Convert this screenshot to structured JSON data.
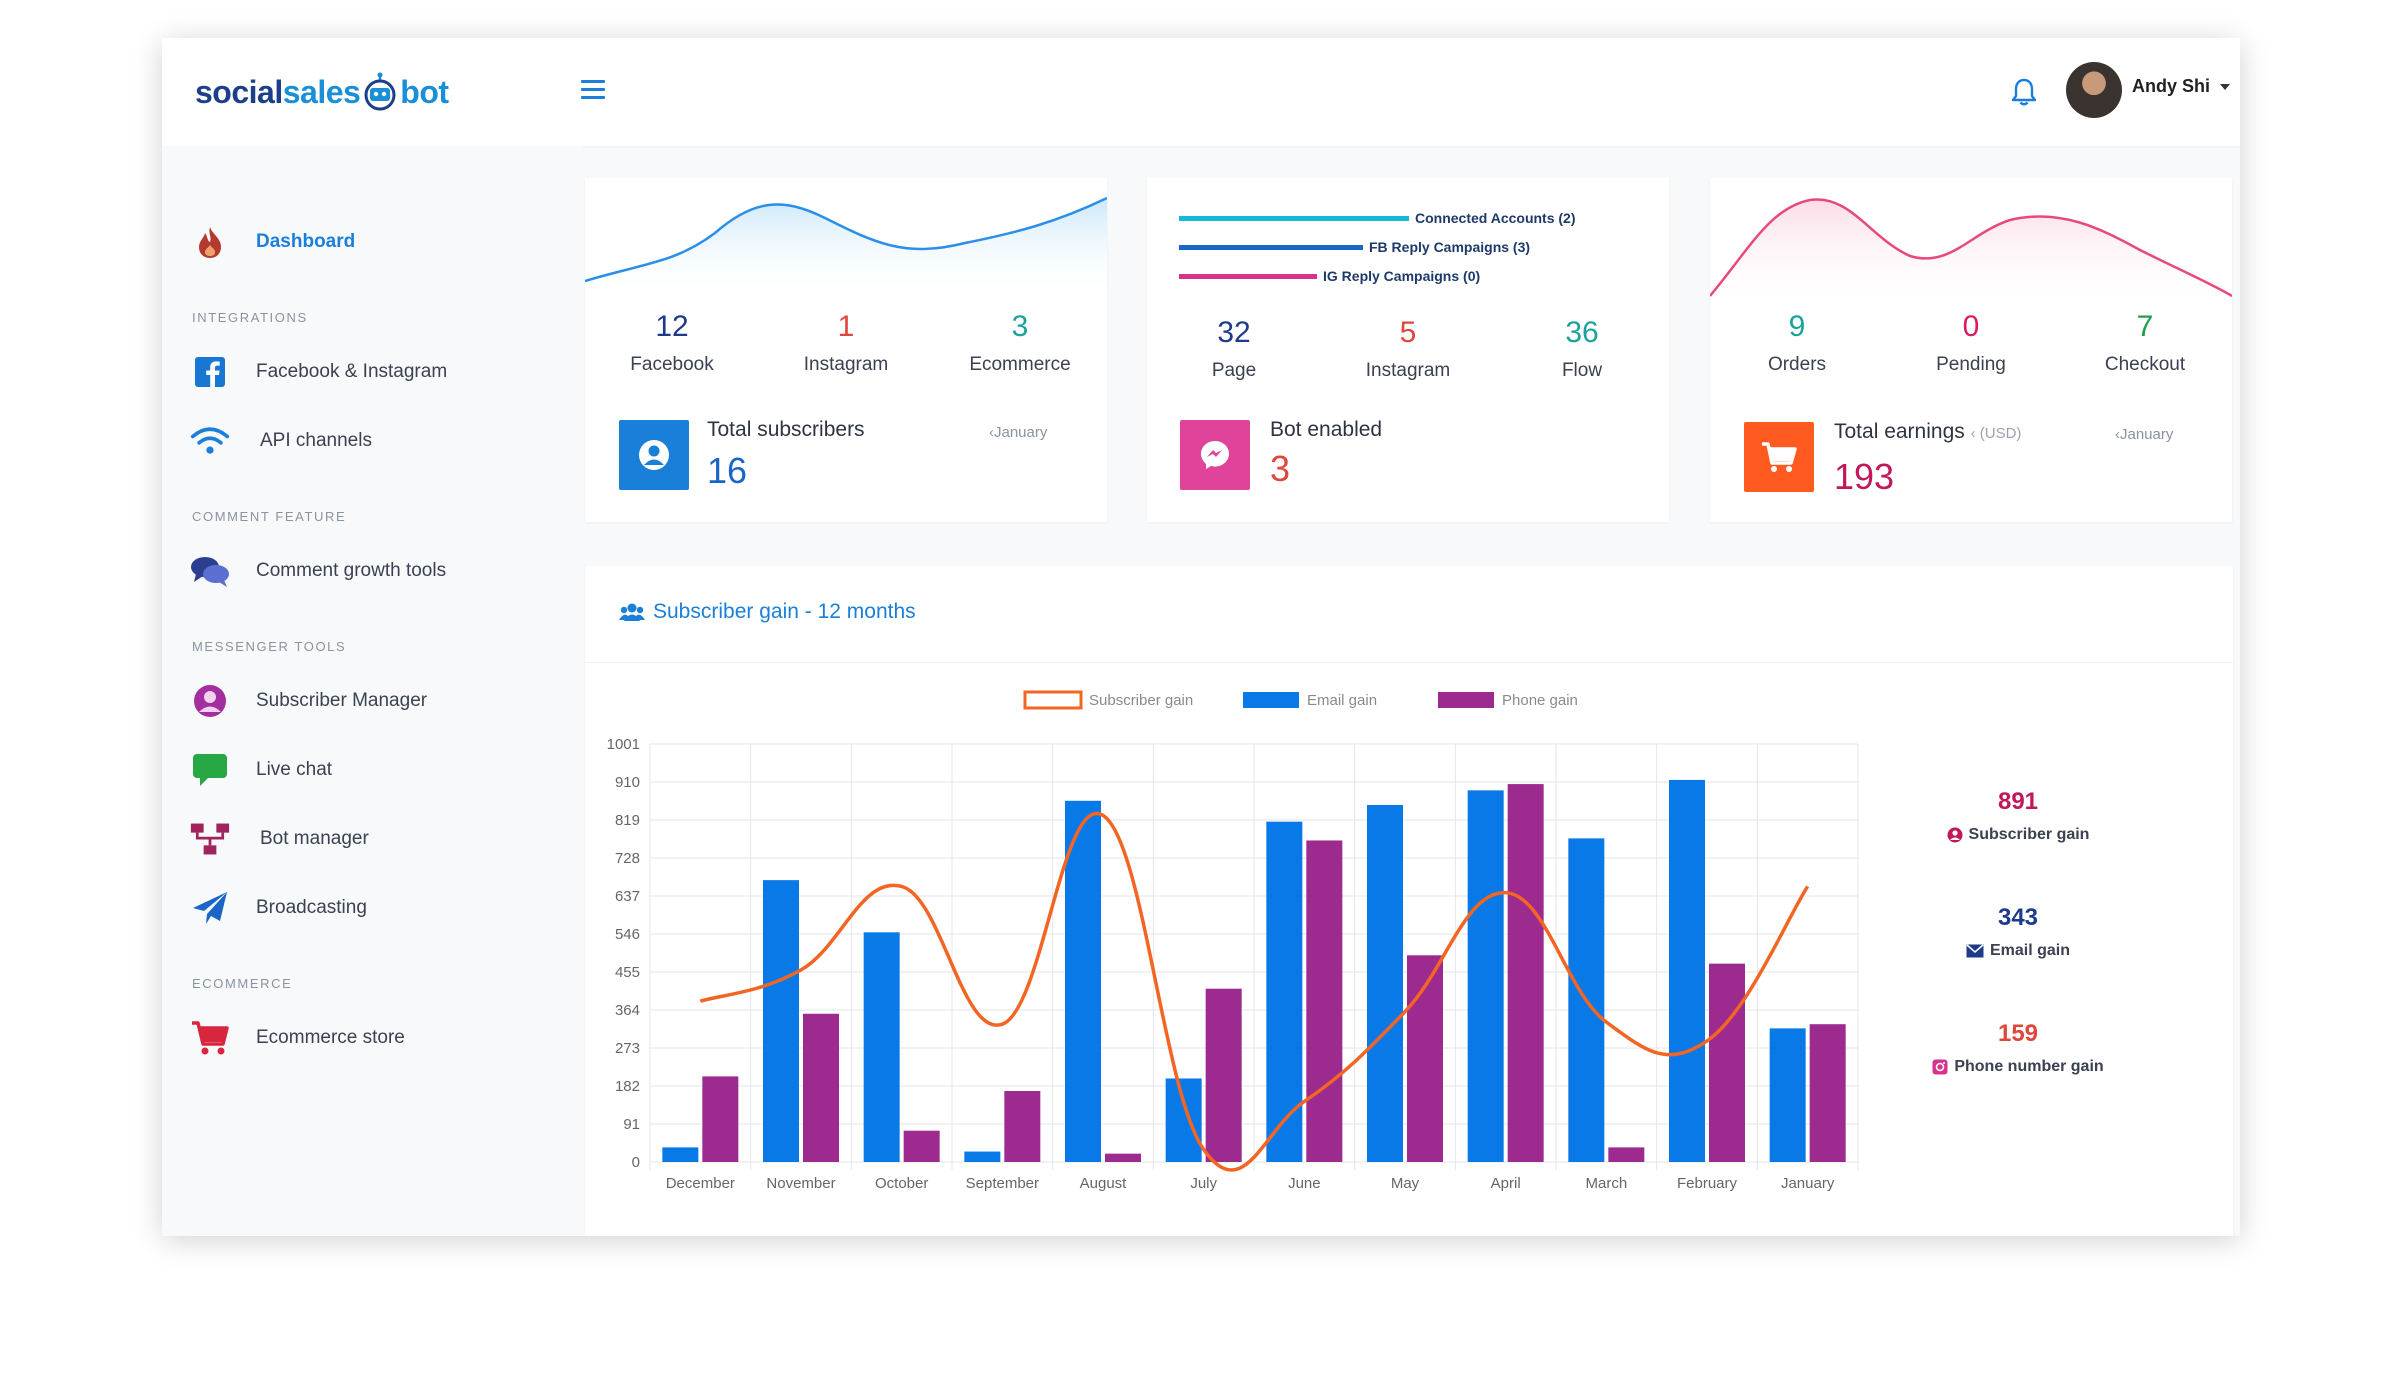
{
  "brand": {
    "part1": "social",
    "part2": "sales",
    "part3": "bot"
  },
  "header": {
    "user_name": "Andy Shi"
  },
  "sidebar": {
    "dashboard": "Dashboard",
    "sections": {
      "integrations": "INTEGRATIONS",
      "comment": "COMMENT FEATURE",
      "messenger": "MESSENGER TOOLS",
      "ecommerce": "ECOMMERCE"
    },
    "items": {
      "facebook_instagram": "Facebook & Instagram",
      "api_channels": "API channels",
      "comment_growth": "Comment growth tools",
      "subscriber_manager": "Subscriber Manager",
      "live_chat": "Live chat",
      "bot_manager": "Bot manager",
      "broadcasting": "Broadcasting",
      "ecommerce_store": "Ecommerce store"
    }
  },
  "card1": {
    "stats": [
      {
        "value": "12",
        "label": "Facebook",
        "color": "#1e3a8a"
      },
      {
        "value": "1",
        "label": "Instagram",
        "color": "#e0473c"
      },
      {
        "value": "3",
        "label": "Ecommerce",
        "color": "#1aa39a"
      }
    ],
    "title": "Total subscribers",
    "value": "16",
    "month": "January",
    "icon_color": "#1a7fd8"
  },
  "card2": {
    "legend": [
      "Connected Accounts (2)",
      "FB Reply Campaigns (3)",
      "IG Reply Campaigns (0)"
    ],
    "stats": [
      {
        "value": "32",
        "label": "Page",
        "color": "#1e3a8a"
      },
      {
        "value": "5",
        "label": "Instagram",
        "color": "#e0473c"
      },
      {
        "value": "36",
        "label": "Flow",
        "color": "#1aa39a"
      }
    ],
    "title": "Bot enabled",
    "value": "3",
    "icon_color": "#e0449a"
  },
  "card3": {
    "stats": [
      {
        "value": "9",
        "label": "Orders",
        "color": "#1aa39a"
      },
      {
        "value": "0",
        "label": "Pending",
        "color": "#d81b60"
      },
      {
        "value": "7",
        "label": "Checkout",
        "color": "#1e9e4a"
      }
    ],
    "title": "Total earnings",
    "currency": "(USD)",
    "value": "193",
    "month": "January",
    "icon_color": "#ff5a1f"
  },
  "subscriber_panel": {
    "title": "Subscriber gain - 12 months",
    "side_stats": [
      {
        "value": "891",
        "label": "Subscriber gain",
        "color": "#c2185b"
      },
      {
        "value": "343",
        "label": "Email gain",
        "color": "#1e3a8a"
      },
      {
        "value": "159",
        "label": "Phone number gain",
        "color": "#e0473c"
      }
    ]
  },
  "chart_data": {
    "type": "bar",
    "categories": [
      "December",
      "November",
      "October",
      "September",
      "August",
      "July",
      "June",
      "May",
      "April",
      "March",
      "February",
      "January"
    ],
    "series": [
      {
        "name": "Subscriber gain",
        "kind": "line",
        "color": "#f26522",
        "values": [
          385,
          460,
          660,
          330,
          830,
          30,
          145,
          360,
          645,
          335,
          290,
          660
        ]
      },
      {
        "name": "Email gain",
        "kind": "bar",
        "color": "#0a79e8",
        "values": [
          35,
          675,
          550,
          25,
          865,
          200,
          815,
          855,
          890,
          775,
          915,
          320
        ]
      },
      {
        "name": "Phone gain",
        "kind": "bar",
        "color": "#9c2a8f",
        "values": [
          205,
          355,
          75,
          170,
          20,
          415,
          770,
          495,
          905,
          35,
          475,
          330
        ]
      }
    ],
    "yticks": [
      "0",
      "91",
      "182",
      "273",
      "364",
      "455",
      "546",
      "637",
      "728",
      "819",
      "910",
      "1001"
    ],
    "ylim": [
      0,
      1001
    ],
    "grid": true,
    "legend_position": "top"
  }
}
